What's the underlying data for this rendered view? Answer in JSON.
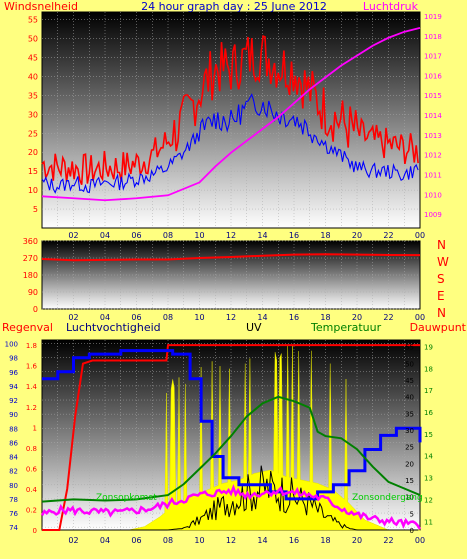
{
  "chart_data": [
    {
      "type": "line",
      "title": "24 hour graph day : 25 June 2012",
      "left_label": "Windsnelheid",
      "right_label": "Luchtdruk",
      "x_ticks": [
        "02",
        "04",
        "06",
        "08",
        "10",
        "12",
        "14",
        "16",
        "18",
        "20",
        "22",
        "00"
      ],
      "y_left_ticks": [
        "5",
        "10",
        "15",
        "20",
        "25",
        "30",
        "35",
        "40",
        "45",
        "50",
        "55"
      ],
      "y_right_ticks": [
        "1009",
        "1010",
        "1011",
        "1012",
        "1013",
        "1014",
        "1015",
        "1016",
        "1017",
        "1018",
        "1019"
      ],
      "ylim_left": [
        0,
        57
      ],
      "ylim_right": [
        1008.3,
        1019.2
      ],
      "grid": true,
      "series": [
        {
          "key": "gust",
          "color": "#ff0000",
          "x": [
            0,
            1,
            2,
            3,
            4,
            5,
            6,
            7,
            8,
            9,
            10,
            11,
            12,
            13,
            14,
            15,
            16,
            17,
            18,
            19,
            20,
            21,
            22,
            23,
            24
          ],
          "values": [
            17,
            16,
            16,
            15,
            16,
            16,
            17,
            19,
            23,
            28,
            36,
            42,
            42,
            45,
            46,
            43,
            42,
            36,
            31,
            28,
            25,
            23,
            22,
            21,
            20
          ]
        },
        {
          "key": "average",
          "color": "#0000ff",
          "x": [
            0,
            1,
            2,
            3,
            4,
            5,
            6,
            7,
            8,
            9,
            10,
            11,
            12,
            13,
            14,
            15,
            16,
            17,
            18,
            19,
            20,
            21,
            22,
            23,
            24
          ],
          "values": [
            12,
            11,
            12,
            11,
            12,
            12,
            13,
            14,
            16,
            20,
            25,
            29,
            28,
            32,
            33,
            30,
            29,
            26,
            22,
            19,
            16,
            15,
            15,
            14,
            16
          ]
        },
        {
          "key": "pressure",
          "color": "#ff00ff",
          "x": [
            0,
            2,
            4,
            6,
            8,
            10,
            11,
            12,
            13,
            14,
            15,
            16,
            17,
            18,
            19,
            20,
            21,
            22,
            23,
            24
          ],
          "values": [
            1009.9,
            1009.8,
            1009.7,
            1009.8,
            1009.95,
            1010.6,
            1011.4,
            1012.1,
            1012.7,
            1013.3,
            1013.9,
            1014.6,
            1015.3,
            1015.9,
            1016.5,
            1017.0,
            1017.5,
            1017.9,
            1018.2,
            1018.4
          ]
        }
      ]
    },
    {
      "type": "line",
      "y_ticks": [
        "360",
        "270",
        "180",
        "90",
        "0"
      ],
      "ylim": [
        0,
        360
      ],
      "compass_labels": [
        "N",
        "W",
        "S",
        "E",
        "N"
      ],
      "x_ticks": [
        "02",
        "04",
        "06",
        "08",
        "10",
        "12",
        "14",
        "16",
        "18",
        "20",
        "22",
        "00"
      ],
      "series": [
        {
          "key": "direction",
          "color": "#ff0000",
          "x": [
            0,
            2,
            4,
            6,
            8,
            10,
            12,
            14,
            16,
            18,
            20,
            22,
            24
          ],
          "values": [
            265,
            258,
            260,
            262,
            262,
            270,
            275,
            282,
            288,
            290,
            288,
            286,
            285
          ]
        }
      ]
    },
    {
      "type": "line",
      "labels": {
        "rain": "Regenval",
        "humidity": "Luchtvochtigheid",
        "uv": "UV",
        "temperature": "Temperatuur",
        "dewpoint": "Dauwpunt"
      },
      "annotations": [
        "Zonsopkomst",
        "Zonsondergang"
      ],
      "y_rain_ticks": [
        "0",
        "0.2",
        "0.4",
        "0.6",
        "0.8",
        "1",
        "1.2",
        "1.4",
        "1.6",
        "1.8"
      ],
      "y_humidity_ticks": [
        "74",
        "76",
        "78",
        "80",
        "82",
        "84",
        "86",
        "88",
        "90",
        "92",
        "94",
        "96",
        "98",
        "100"
      ],
      "y_uv_ticks": [
        "0",
        "5",
        "10",
        "15",
        "20",
        "25",
        "30",
        "35",
        "40",
        "45",
        "50",
        "55"
      ],
      "y_temp_ticks": [
        "11",
        "12",
        "13",
        "14",
        "15",
        "16",
        "17",
        "18",
        "19"
      ],
      "x_ticks": [
        "02",
        "04",
        "06",
        "08",
        "10",
        "12",
        "14",
        "16",
        "18",
        "20",
        "22",
        "00"
      ],
      "series": [
        {
          "key": "rain",
          "color": "#ff0000",
          "x": [
            0,
            1.1,
            1.6,
            2.1,
            2.6,
            3.2,
            7.9,
            8.0,
            24
          ],
          "values": [
            0,
            0,
            0.4,
            1.1,
            1.62,
            1.65,
            1.65,
            1.8,
            1.8
          ]
        },
        {
          "key": "humidity",
          "color": "#0000ff",
          "x": [
            0,
            1,
            2,
            3,
            5,
            7.9,
            8.3,
            9.4,
            10.1,
            10.8,
            11.5,
            12.5,
            13.5,
            14.5,
            15.5,
            16.5,
            17.5,
            18.5,
            19.5,
            20.5,
            21.5,
            22.5,
            23.5,
            24
          ],
          "values": [
            95,
            96,
            98,
            98.5,
            99,
            99,
            98.5,
            95,
            89,
            84,
            81,
            80,
            80,
            79,
            78,
            78,
            79,
            80,
            82,
            85,
            87,
            88,
            88,
            86
          ]
        },
        {
          "key": "temperature",
          "color": "#008000",
          "x": [
            0,
            2,
            4,
            6,
            8,
            9,
            10,
            11,
            12,
            13,
            14,
            15,
            16,
            17,
            17.5,
            18,
            19,
            20,
            21,
            22,
            23,
            24
          ],
          "values": [
            11.9,
            12.0,
            11.95,
            12.0,
            12.2,
            12.7,
            13.4,
            14.1,
            14.9,
            15.8,
            16.4,
            16.7,
            16.5,
            16.2,
            15.1,
            14.9,
            14.8,
            14.3,
            13.5,
            12.8,
            12.5,
            12.2
          ]
        },
        {
          "key": "dewpoint",
          "color": "#ff00ff",
          "x": [
            0,
            1,
            2,
            3,
            4,
            5,
            6,
            7,
            8,
            9,
            10,
            11,
            12,
            13,
            14,
            15,
            16,
            17,
            18,
            19,
            20,
            21,
            22,
            23,
            24
          ],
          "values": [
            11.3,
            11.5,
            11.5,
            11.45,
            11.4,
            11.4,
            11.5,
            11.6,
            11.8,
            12.0,
            12.2,
            12.3,
            12.4,
            12.2,
            12.3,
            12.4,
            12.3,
            12.2,
            12.0,
            11.6,
            11.3,
            11.1,
            11.0,
            10.9,
            10.8
          ]
        },
        {
          "key": "uv_line",
          "color": "#000000",
          "x": [
            0,
            8,
            9,
            10,
            11,
            12,
            13,
            14,
            15,
            16,
            17,
            18,
            19,
            19.5,
            20,
            24
          ],
          "values": [
            0,
            0,
            0.5,
            3,
            6,
            9,
            11,
            13,
            12,
            10,
            8,
            4,
            1.5,
            0.5,
            0,
            0
          ]
        },
        {
          "key": "uv_area",
          "color": "#ffff00",
          "x": [
            0,
            5.5,
            6.5,
            7.5,
            8.5,
            9.5,
            10.5,
            11.5,
            12.5,
            13.5,
            14.5,
            15.5,
            16.5,
            17.5,
            18.5,
            19.5,
            20.5,
            21.5,
            22,
            24
          ],
          "values": [
            0,
            0,
            1,
            4,
            8,
            10,
            12,
            14,
            15,
            17,
            18,
            16,
            15,
            14,
            12,
            8,
            3,
            1,
            0,
            0
          ]
        }
      ]
    }
  ]
}
